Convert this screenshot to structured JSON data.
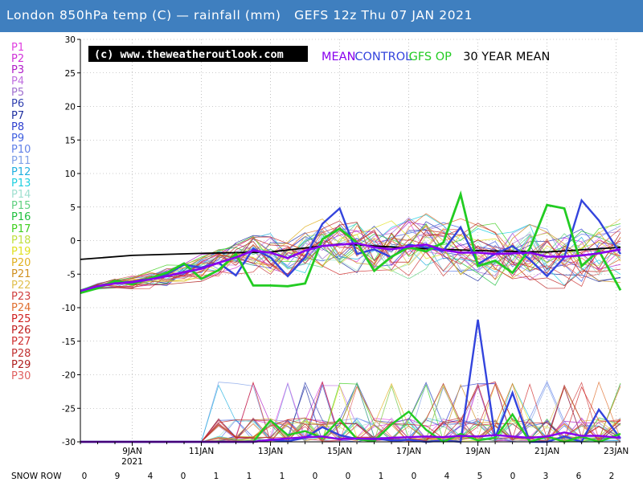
{
  "header": {
    "title": "London 850hPa temp (C) — rainfall (mm)   GEFS 12z Thu 07 JAN 2021"
  },
  "ensemble_legend": [
    {
      "label": "P1",
      "color": "#e040e0"
    },
    {
      "label": "P2",
      "color": "#d030d8"
    },
    {
      "label": "P3",
      "color": "#b020c8"
    },
    {
      "label": "P4",
      "color": "#c070e0"
    },
    {
      "label": "P5",
      "color": "#a070d0"
    },
    {
      "label": "P6",
      "color": "#3040b0"
    },
    {
      "label": "P7",
      "color": "#2030a0"
    },
    {
      "label": "P8",
      "color": "#3040d0"
    },
    {
      "label": "P9",
      "color": "#4060e0"
    },
    {
      "label": "P10",
      "color": "#6080e8"
    },
    {
      "label": "P11",
      "color": "#80a0e8"
    },
    {
      "label": "P12",
      "color": "#20b0e0"
    },
    {
      "label": "P13",
      "color": "#20d0e0"
    },
    {
      "label": "P14",
      "color": "#a0e0d0"
    },
    {
      "label": "P15",
      "color": "#60d080"
    },
    {
      "label": "P16",
      "color": "#20c040"
    },
    {
      "label": "P17",
      "color": "#40d020"
    },
    {
      "label": "P18",
      "color": "#c0e040"
    },
    {
      "label": "P19",
      "color": "#e0e020"
    },
    {
      "label": "P20",
      "color": "#e0b020"
    },
    {
      "label": "P21",
      "color": "#d09020"
    },
    {
      "label": "P22",
      "color": "#e0c050"
    },
    {
      "label": "P23",
      "color": "#d04040"
    },
    {
      "label": "P24",
      "color": "#e07030"
    },
    {
      "label": "P25",
      "color": "#d02020"
    },
    {
      "label": "P26",
      "color": "#c02020"
    },
    {
      "label": "P27",
      "color": "#d03030"
    },
    {
      "label": "P28",
      "color": "#c03030"
    },
    {
      "label": "P29",
      "color": "#b02020"
    },
    {
      "label": "P30",
      "color": "#e06060"
    }
  ],
  "chart_data": {
    "type": "line",
    "ylim": [
      -30,
      30
    ],
    "xlim": [
      0,
      375
    ],
    "y_ticks": [
      "30",
      "25",
      "20",
      "15",
      "10",
      "5",
      "0",
      "-5",
      "-10",
      "-15",
      "-20",
      "-25",
      "-30"
    ],
    "x_tick_labels": [
      "9JAN",
      "11JAN",
      "13JAN",
      "15JAN",
      "17JAN",
      "19JAN",
      "21JAN",
      "23JAN"
    ],
    "x_tick_hours": [
      36,
      84,
      132,
      180,
      228,
      276,
      324,
      372
    ],
    "x_sublabel": "2021",
    "watermark": "(c) www.theweatheroutlook.com",
    "series_legend": [
      {
        "name": "MEAN",
        "color": "#8800ee"
      },
      {
        "name": "CONTROL",
        "color": "#3344dd"
      },
      {
        "name": "GFS OP",
        "color": "#22cc22"
      },
      {
        "name": "30 YEAR MEAN",
        "color": "#000000"
      }
    ],
    "snow_row": {
      "label": "SNOW ROW",
      "values": [
        "0",
        "9",
        "4",
        "0",
        "1",
        "1",
        "1",
        "0",
        "0",
        "1",
        "0",
        "4",
        "5",
        "0",
        "3",
        "6",
        "2"
      ]
    },
    "temperature_series": [
      {
        "name": "30 YEAR MEAN",
        "color": "#000000",
        "x": [
          0,
          36,
          84,
          132,
          180,
          228,
          276,
          324,
          375
        ],
        "y": [
          -2.8,
          -2.2,
          -1.9,
          -1.7,
          -0.5,
          -1.1,
          -1.5,
          -1.7,
          -1.0
        ]
      },
      {
        "name": "MEAN",
        "color": "#8800ee",
        "x": [
          0,
          12,
          24,
          36,
          48,
          60,
          72,
          84,
          96,
          108,
          120,
          132,
          144,
          156,
          168,
          180,
          192,
          204,
          216,
          228,
          240,
          252,
          264,
          276,
          288,
          300,
          312,
          324,
          336,
          348,
          360,
          375
        ],
        "y": [
          -7.5,
          -6.8,
          -6.4,
          -6.2,
          -5.8,
          -5.3,
          -4.7,
          -4.2,
          -3.3,
          -2.5,
          -1.5,
          -1.8,
          -2.6,
          -1.5,
          -0.8,
          -0.6,
          -0.4,
          -1.0,
          -1.3,
          -0.9,
          -0.6,
          -1.4,
          -1.8,
          -1.8,
          -2.0,
          -1.9,
          -1.8,
          -2.4,
          -2.4,
          -2.2,
          -1.9,
          -1.3
        ]
      },
      {
        "name": "CONTROL",
        "color": "#3344dd",
        "x": [
          0,
          12,
          24,
          36,
          48,
          60,
          72,
          84,
          96,
          108,
          120,
          132,
          144,
          156,
          168,
          180,
          192,
          204,
          216,
          228,
          240,
          252,
          264,
          276,
          288,
          300,
          312,
          324,
          336,
          348,
          360,
          375
        ],
        "y": [
          -7.6,
          -6.8,
          -6.2,
          -6.2,
          -5.6,
          -5.0,
          -3.6,
          -4.0,
          -3.3,
          -5.2,
          -1.2,
          -2.5,
          -5.3,
          -2.5,
          2.5,
          4.8,
          -2.0,
          -1.3,
          -2.5,
          -0.6,
          -1.0,
          -1.5,
          2.0,
          -3.5,
          -2.0,
          -0.8,
          -2.8,
          -5.3,
          -2.5,
          6.0,
          3.0,
          -2.0
        ]
      },
      {
        "name": "GFS OP",
        "color": "#22cc22",
        "x": [
          0,
          12,
          24,
          36,
          48,
          60,
          72,
          84,
          96,
          108,
          120,
          132,
          144,
          156,
          168,
          180,
          192,
          204,
          216,
          228,
          240,
          252,
          264,
          276,
          288,
          300,
          312,
          324,
          336,
          348,
          360,
          375
        ],
        "y": [
          -7.8,
          -7.1,
          -6.0,
          -6.5,
          -5.6,
          -4.8,
          -3.4,
          -5.7,
          -4.4,
          -2.0,
          -6.7,
          -6.7,
          -6.8,
          -6.4,
          0.2,
          1.8,
          -0.3,
          -4.5,
          -2.4,
          -1.0,
          -1.6,
          -0.3,
          6.9,
          -3.8,
          -3.0,
          -4.8,
          -1.2,
          5.3,
          4.8,
          -3.8,
          -1.5,
          -7.4
        ]
      }
    ],
    "rainfall_series": [
      {
        "name": "CONTROL",
        "color": "#3344dd",
        "x": [
          0,
          84,
          120,
          132,
          144,
          156,
          168,
          180,
          192,
          204,
          216,
          228,
          240,
          252,
          264,
          276,
          288,
          300,
          312,
          324,
          336,
          348,
          360,
          375
        ],
        "y": [
          0,
          0,
          0,
          0.3,
          0.1,
          0.6,
          2.2,
          1.0,
          0.4,
          0.5,
          0.2,
          0.3,
          0.0,
          0.2,
          0.0,
          18.2,
          0.6,
          7.3,
          0.0,
          0.0,
          0.8,
          0.0,
          4.8,
          0.5
        ]
      },
      {
        "name": "GFS OP",
        "color": "#22cc22",
        "x": [
          0,
          84,
          120,
          132,
          144,
          156,
          168,
          180,
          192,
          204,
          216,
          228,
          240,
          252,
          264,
          276,
          288,
          300,
          312,
          324,
          336,
          348,
          360,
          375
        ],
        "y": [
          0,
          0,
          0,
          3.2,
          1.0,
          1.6,
          0.6,
          3.4,
          0.4,
          0.1,
          2.6,
          4.5,
          1.8,
          0.0,
          1.2,
          0.2,
          0.6,
          4.1,
          0.0,
          0.8,
          0.0,
          0.8,
          0.0,
          1.2
        ]
      },
      {
        "name": "MEAN",
        "color": "#8800ee",
        "x": [
          0,
          84,
          120,
          132,
          144,
          156,
          168,
          180,
          192,
          204,
          216,
          228,
          240,
          252,
          264,
          276,
          288,
          300,
          312,
          324,
          336,
          348,
          360,
          375
        ],
        "y": [
          0,
          0,
          0,
          0.3,
          0.5,
          0.7,
          0.8,
          0.4,
          0.5,
          0.4,
          0.6,
          0.7,
          0.8,
          0.7,
          0.9,
          0.8,
          1.0,
          0.8,
          0.6,
          0.8,
          1.4,
          0.9,
          0.9,
          0.6
        ]
      }
    ]
  }
}
